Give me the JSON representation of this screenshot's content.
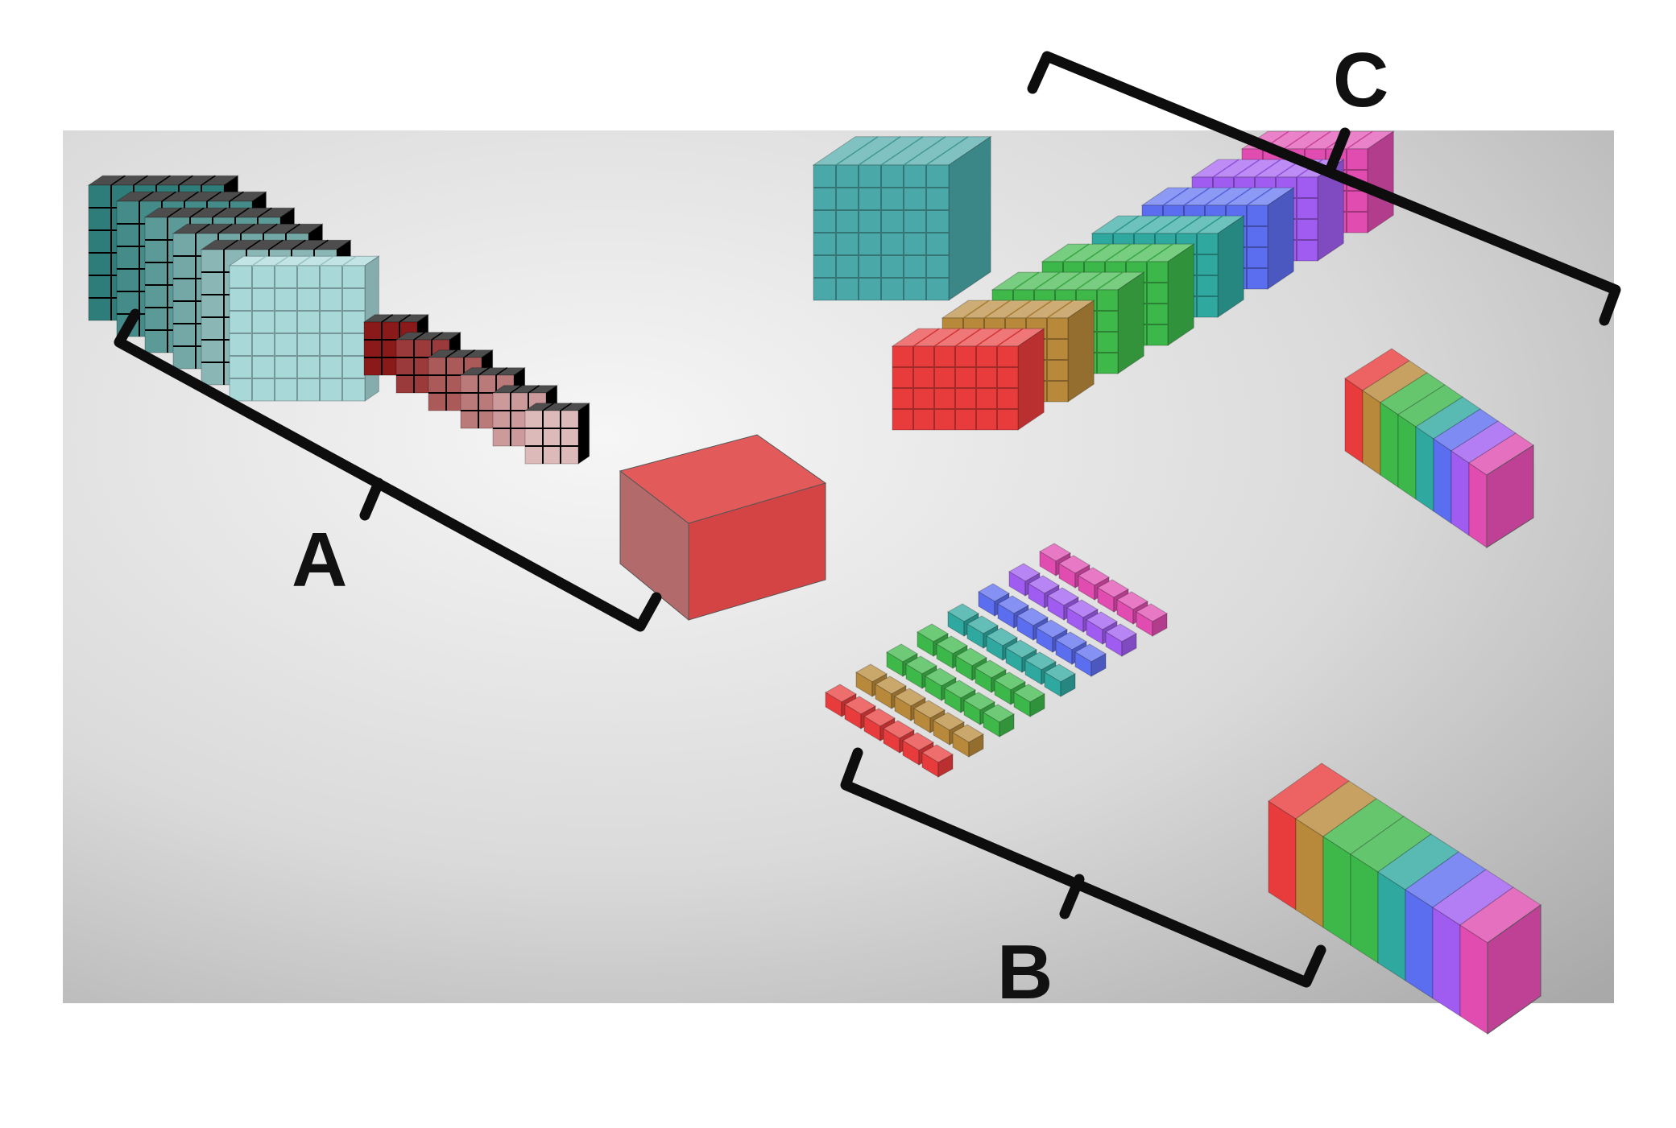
{
  "labels": {
    "a": "A",
    "b": "B",
    "c": "C"
  },
  "colors": {
    "background_light": "#f4f4f4",
    "background_dark": "#bdbdbd",
    "bracket": "#0d0d0d",
    "teal": "#4aa8a8",
    "teal_dark": "#2e7d7a",
    "teal_light": "#a8d8d8",
    "red": "#e04848",
    "red_dark": "#8a1a1a",
    "red_light": "#f08a8a",
    "channel_palette": [
      "#e83c3c",
      "#b8893a",
      "#3fb84a",
      "#3cb84a",
      "#2fa8a0",
      "#5c6ef0",
      "#a05cf0",
      "#e04cb0"
    ]
  },
  "groups": {
    "a": {
      "description_colors": [
        "teal",
        "red"
      ]
    },
    "b": {
      "strips": 8
    },
    "c": {
      "blocks": 8
    }
  }
}
